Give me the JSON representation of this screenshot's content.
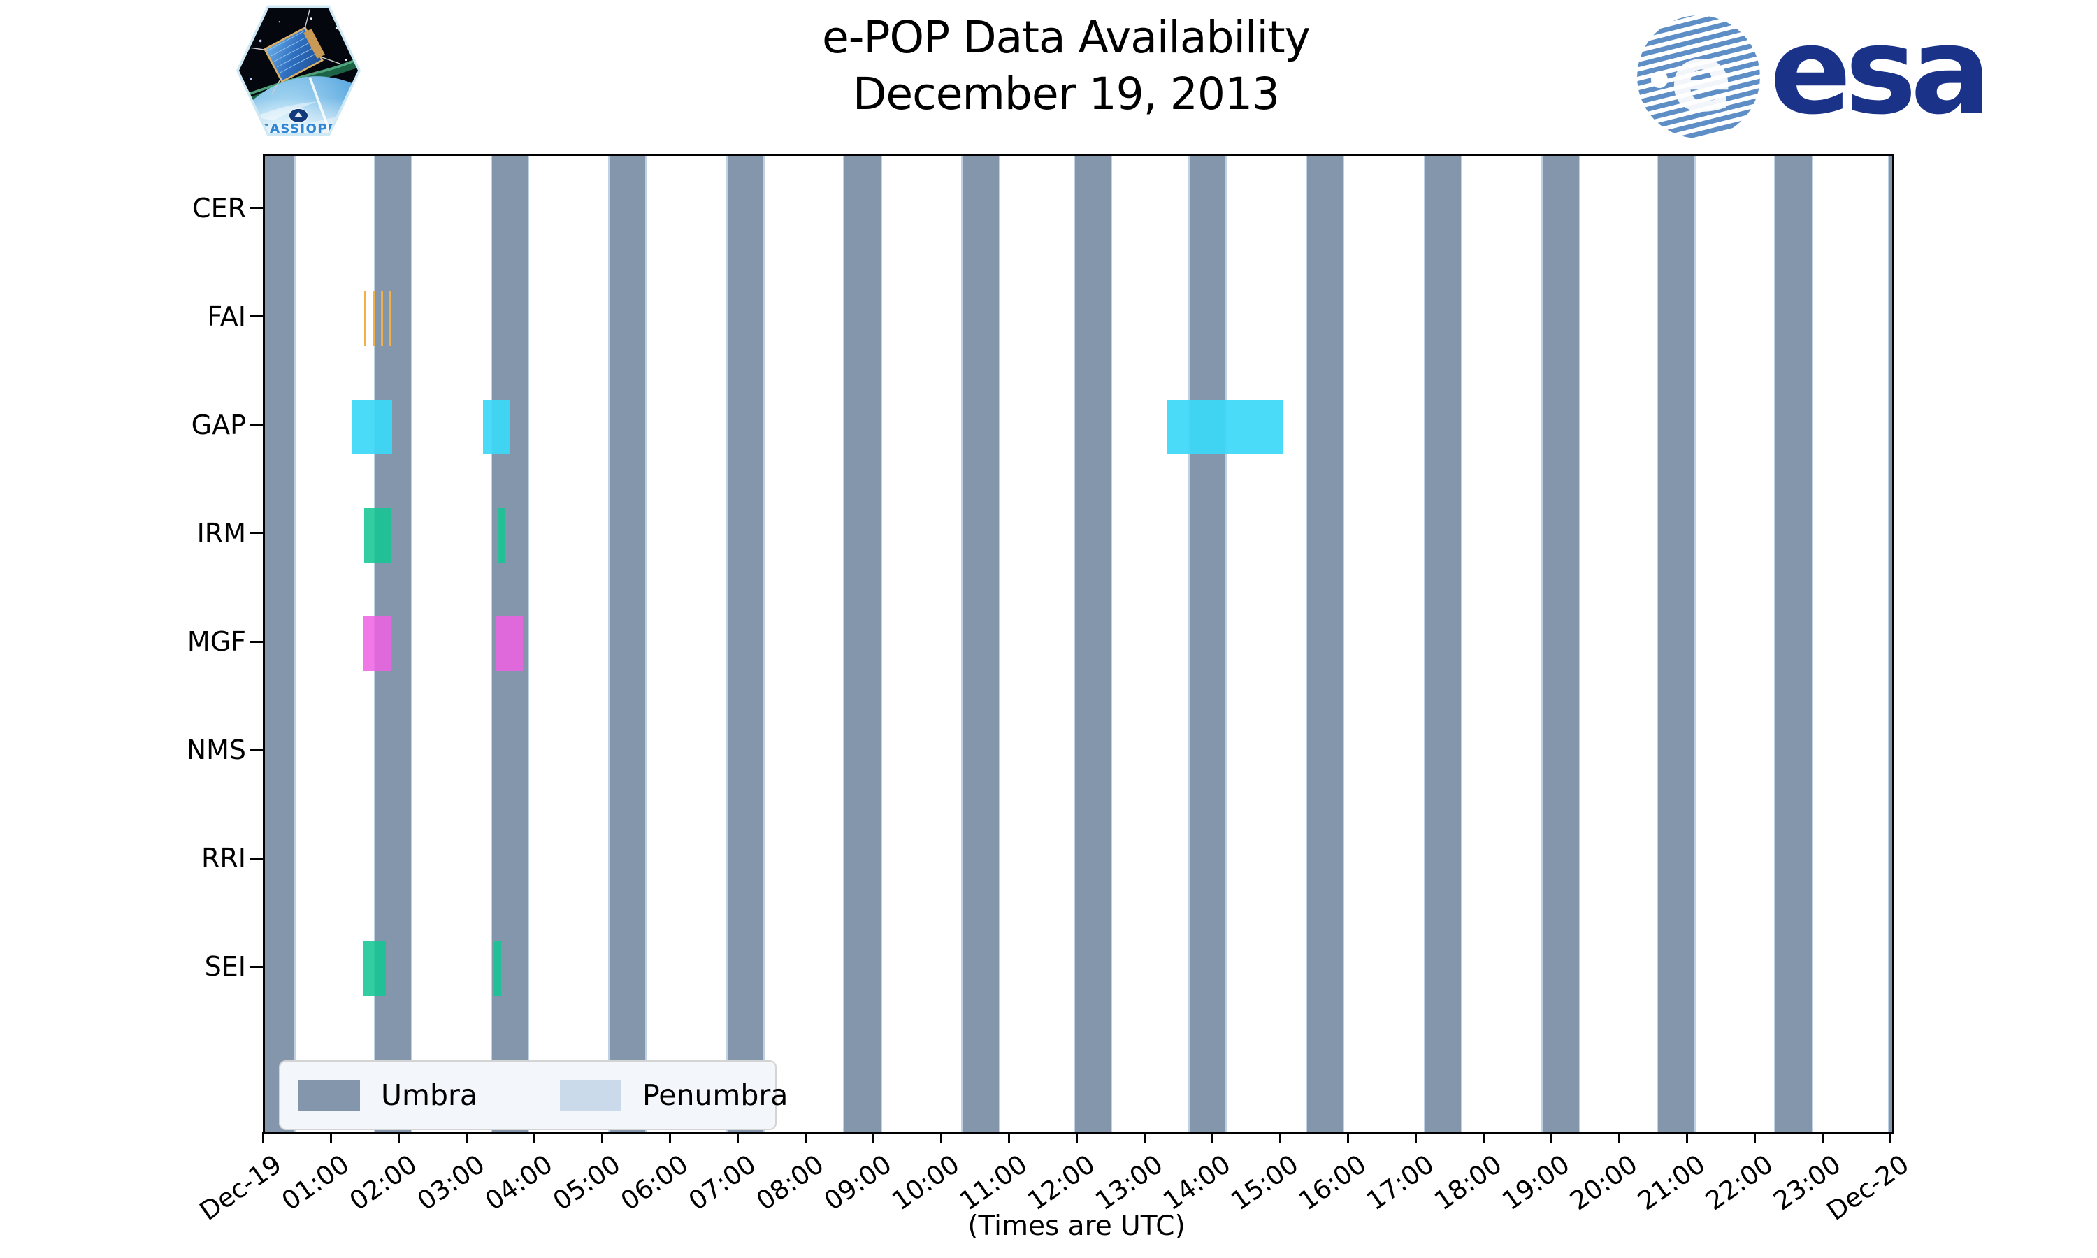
{
  "header": {
    "title_line1": "e-POP Data Availability",
    "title_line2": "December 19, 2013",
    "cassiope_patch_label": "CASSIOPE",
    "esa_logo_text": "esa"
  },
  "chart_data": {
    "type": "timeline",
    "title": "e-POP Data Availability December 19, 2013",
    "xlabel": "(Times are UTC)",
    "x_range_hours": [
      0,
      24
    ],
    "x_tick_labels": [
      "Dec-19",
      "01:00",
      "02:00",
      "03:00",
      "04:00",
      "05:00",
      "06:00",
      "07:00",
      "08:00",
      "09:00",
      "10:00",
      "11:00",
      "12:00",
      "13:00",
      "14:00",
      "15:00",
      "16:00",
      "17:00",
      "18:00",
      "19:00",
      "20:00",
      "21:00",
      "22:00",
      "23:00",
      "Dec-20"
    ],
    "instruments": [
      "CER",
      "FAI",
      "GAP",
      "IRM",
      "MGF",
      "NMS",
      "RRI",
      "SEI"
    ],
    "umbra_intervals_hours": [
      [
        -0.09,
        0.43
      ],
      [
        1.63,
        2.15
      ],
      [
        3.35,
        3.88
      ],
      [
        5.08,
        5.61
      ],
      [
        6.82,
        7.35
      ],
      [
        8.55,
        9.08
      ],
      [
        10.29,
        10.82
      ],
      [
        11.95,
        12.47
      ],
      [
        13.64,
        14.17
      ],
      [
        15.37,
        15.9
      ],
      [
        17.11,
        17.64
      ],
      [
        18.85,
        19.38
      ],
      [
        20.55,
        21.08
      ],
      [
        22.28,
        22.81
      ],
      [
        23.96,
        24.0
      ]
    ],
    "availability_blocks": [
      {
        "instrument": "FAI",
        "start_hour": 1.46,
        "end_hour": 1.87,
        "style": "hatched-vertical",
        "color": "#EFB24B"
      },
      {
        "instrument": "GAP",
        "start_hour": 1.29,
        "end_hour": 1.88,
        "style": "solid",
        "color": "rgba(60,216,247,0.93)"
      },
      {
        "instrument": "GAP",
        "start_hour": 3.22,
        "end_hour": 3.62,
        "style": "solid",
        "color": "rgba(60,216,247,0.93)"
      },
      {
        "instrument": "GAP",
        "start_hour": 13.3,
        "end_hour": 15.02,
        "style": "solid",
        "color": "rgba(60,216,247,0.93)"
      },
      {
        "instrument": "IRM",
        "start_hour": 1.46,
        "end_hour": 1.86,
        "style": "solid",
        "color": "rgba(22,198,148,0.88)"
      },
      {
        "instrument": "IRM",
        "start_hour": 3.43,
        "end_hour": 3.55,
        "style": "solid",
        "color": "rgba(22,198,148,0.88)"
      },
      {
        "instrument": "MGF",
        "start_hour": 1.45,
        "end_hour": 1.87,
        "style": "solid",
        "color": "rgba(238,96,227,0.85)"
      },
      {
        "instrument": "MGF",
        "start_hour": 3.41,
        "end_hour": 3.8,
        "style": "solid",
        "color": "rgba(238,96,227,0.85)"
      },
      {
        "instrument": "SEI",
        "start_hour": 1.44,
        "end_hour": 1.78,
        "style": "solid",
        "color": "rgba(22,198,148,0.88)"
      },
      {
        "instrument": "SEI",
        "start_hour": 3.38,
        "end_hour": 3.48,
        "style": "solid",
        "color": "rgba(22,198,148,0.88)"
      }
    ],
    "legend": [
      {
        "label": "Umbra",
        "color": "#8496AB"
      },
      {
        "label": "Penumbra",
        "color": "#CBDAEA"
      }
    ],
    "legend_position": "lower left",
    "grid": false
  },
  "colors": {
    "umbra": "#8496AB",
    "penumbra_edge": "#BFD1E4",
    "axis": "#000000",
    "esa_navy": "#1A3389",
    "esa_swirl_blue": "#5E8EC6",
    "cassiope_text_blue": "#2E86D6"
  }
}
